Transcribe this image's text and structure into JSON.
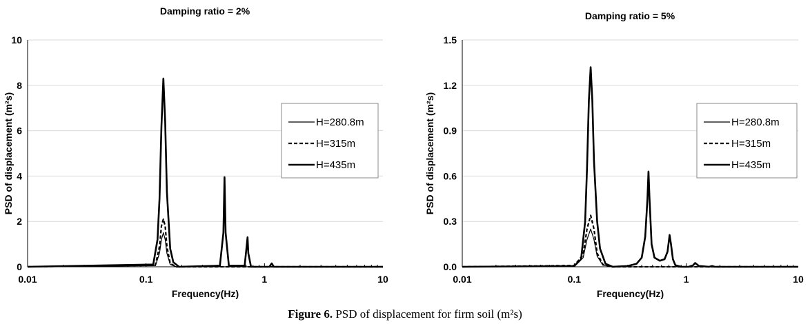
{
  "figure": {
    "caption_label": "Figure 6.",
    "caption_text": "PSD of displacement for firm soil (m²s)"
  },
  "chart_data": [
    {
      "type": "line",
      "title": "Damping ratio = 2%",
      "xlabel": "Frequency(Hz)",
      "ylabel": "PSD of displacement (m²s)",
      "xscale": "log",
      "xlim": [
        0.01,
        10
      ],
      "ylim": [
        0,
        10
      ],
      "xticks": [
        "0.01",
        "0.1",
        "1",
        "10"
      ],
      "yticks": [
        "0",
        "2",
        "4",
        "6",
        "8",
        "10"
      ],
      "grid": "horizontal",
      "legend_position": "right-middle",
      "series": [
        {
          "name": "H=280.8m",
          "style": "thin-solid",
          "x": [
            0.01,
            0.12,
            0.13,
            0.135,
            0.14,
            0.145,
            0.15,
            0.16,
            0.18,
            10
          ],
          "y": [
            0,
            0.05,
            0.6,
            1.2,
            1.5,
            1.2,
            0.6,
            0.1,
            0,
            0
          ]
        },
        {
          "name": "H=315m",
          "style": "dashed",
          "x": [
            0.01,
            0.12,
            0.13,
            0.135,
            0.14,
            0.145,
            0.15,
            0.16,
            0.18,
            10
          ],
          "y": [
            0,
            0.08,
            0.9,
            1.8,
            2.1,
            1.8,
            0.9,
            0.15,
            0,
            0
          ]
        },
        {
          "name": "H=435m",
          "style": "thick-solid",
          "x": [
            0.01,
            0.115,
            0.125,
            0.13,
            0.135,
            0.14,
            0.145,
            0.15,
            0.16,
            0.17,
            0.19,
            0.42,
            0.45,
            0.46,
            0.47,
            0.5,
            0.68,
            0.71,
            0.72,
            0.73,
            0.77,
            1.1,
            1.15,
            1.2,
            10
          ],
          "y": [
            0,
            0.1,
            1.2,
            3.0,
            6.2,
            8.3,
            6.4,
            3.3,
            0.8,
            0.2,
            0,
            0.05,
            1.5,
            3.95,
            1.5,
            0.05,
            0.05,
            1.0,
            1.3,
            0.6,
            0,
            0,
            0.15,
            0,
            0
          ]
        }
      ]
    },
    {
      "type": "line",
      "title": "Damping ratio = 5%",
      "xlabel": "Frequency(Hz)",
      "ylabel": "PSD of displacement (m²s)",
      "xscale": "log",
      "xlim": [
        0.01,
        10
      ],
      "ylim": [
        0,
        1.5
      ],
      "xticks": [
        "0.01",
        "0.1",
        "1",
        "10"
      ],
      "yticks": [
        "0.0",
        "0.3",
        "0.6",
        "0.9",
        "1.2",
        "1.5"
      ],
      "grid": "horizontal",
      "legend_position": "right-middle",
      "series": [
        {
          "name": "H=280.8m",
          "style": "thin-solid",
          "x": [
            0.01,
            0.1,
            0.12,
            0.13,
            0.14,
            0.15,
            0.16,
            0.18,
            0.22,
            10
          ],
          "y": [
            0,
            0.005,
            0.06,
            0.18,
            0.25,
            0.18,
            0.07,
            0.01,
            0,
            0
          ]
        },
        {
          "name": "H=315m",
          "style": "dashed",
          "x": [
            0.01,
            0.1,
            0.12,
            0.13,
            0.14,
            0.15,
            0.16,
            0.18,
            0.22,
            10
          ],
          "y": [
            0,
            0.008,
            0.08,
            0.25,
            0.34,
            0.25,
            0.09,
            0.015,
            0,
            0
          ]
        },
        {
          "name": "H=435m",
          "style": "thick-solid",
          "x": [
            0.01,
            0.1,
            0.115,
            0.125,
            0.13,
            0.135,
            0.14,
            0.145,
            0.15,
            0.16,
            0.17,
            0.19,
            0.22,
            0.3,
            0.36,
            0.4,
            0.43,
            0.45,
            0.46,
            0.47,
            0.49,
            0.52,
            0.58,
            0.64,
            0.68,
            0.71,
            0.73,
            0.76,
            0.8,
            0.9,
            1.05,
            1.15,
            1.2,
            1.3,
            1.6,
            1.7,
            1.8,
            10
          ],
          "y": [
            0,
            0.005,
            0.05,
            0.3,
            0.65,
            1.1,
            1.32,
            1.1,
            0.7,
            0.3,
            0.12,
            0.02,
            0,
            0.005,
            0.02,
            0.06,
            0.2,
            0.45,
            0.63,
            0.45,
            0.15,
            0.06,
            0.04,
            0.05,
            0.1,
            0.21,
            0.15,
            0.05,
            0.01,
            0,
            0,
            0.01,
            0.025,
            0.005,
            0,
            0.005,
            0,
            0
          ]
        }
      ]
    }
  ]
}
